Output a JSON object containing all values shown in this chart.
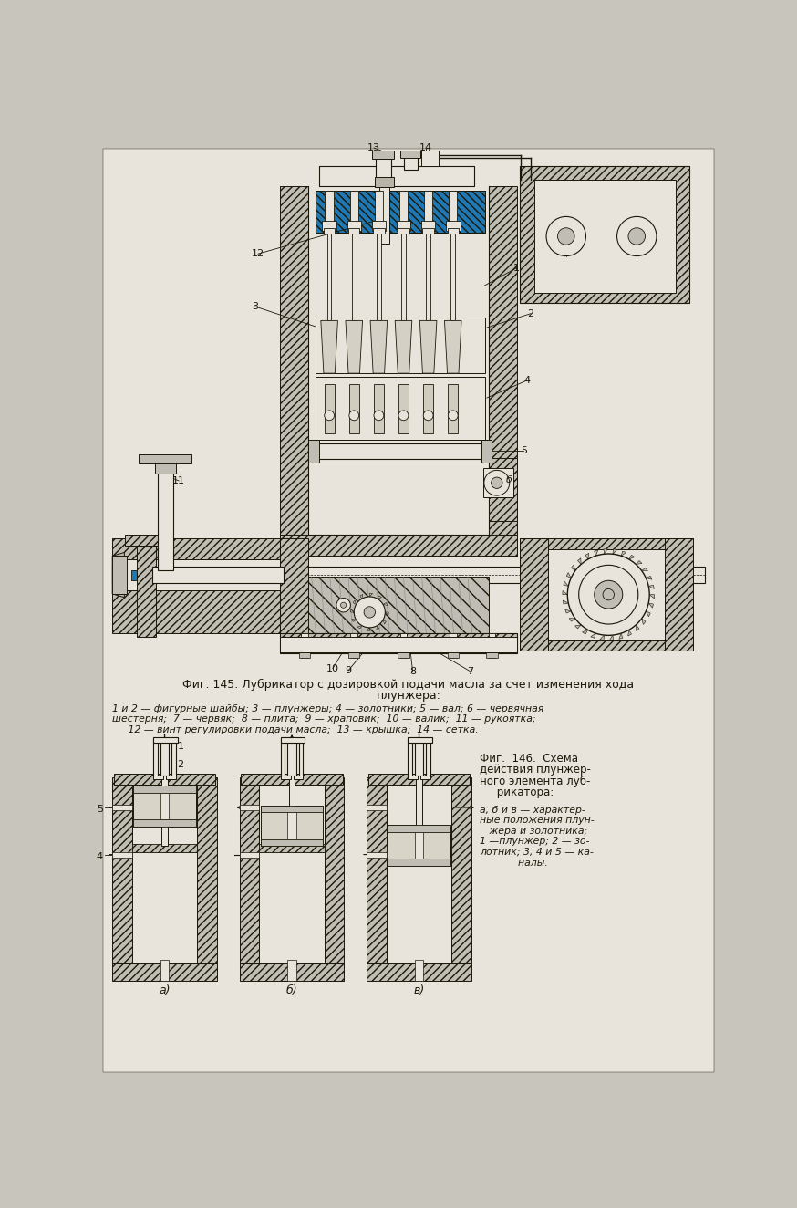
{
  "bg_color": "#c8c5bc",
  "page_color": "#e8e4dc",
  "line_color": "#1a1808",
  "hatch_color": "#2a2818",
  "title_fig145_line1": "Фиг. 145. Лубрикатор с дозировкой подачи масла за счет изменения хода",
  "title_fig145_line2": "плунжера:",
  "caption_fig145": "1 и 2 — фигурные шайбы; 3 — плунжеры; 4 — золотники; 5 — вал; 6 — червячная\nшестерня;  7 — червяк;  8 — плита;  9 — храповик;  10 — валик;  11 — рукоятка;\n     12 — винт регулировки подачи масла;  13 — крышка;  14 — сетка.",
  "title_fig146_line1": "Фиг.  146.  Схема",
  "title_fig146_line2": "действия плунжер-",
  "title_fig146_line3": "ного элемента луб-",
  "title_fig146_line4": "     рикатора:",
  "caption_fig146": "а, б и в — характер-\nные положения плун-\n   жера и золотника;\n1 —плунжер; 2 — зо-\nлотник; 3, 4 и 5 — ка-\n            налы.",
  "label_a": "а)",
  "label_b": "б)",
  "label_v": "в)"
}
